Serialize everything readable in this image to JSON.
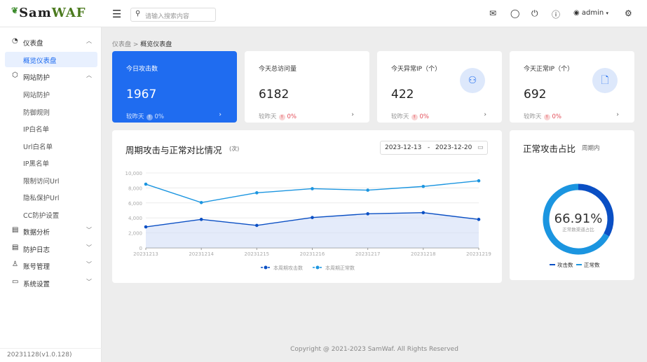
{
  "header": {
    "logo": "SamWAF",
    "search_placeholder": "请输入搜索内容",
    "user": "admin",
    "icons": [
      "mail-icon",
      "loading-icon",
      "power-icon",
      "help-icon",
      "user-icon",
      "settings-icon"
    ]
  },
  "sidebar": {
    "items": [
      {
        "label": "仪表盘",
        "icon": "dashboard-icon",
        "expanded": true
      },
      {
        "label": "概览仪表盘",
        "active": true
      },
      {
        "label": "网站防护",
        "icon": "shield-icon",
        "expanded": true
      },
      {
        "label": "网站防护"
      },
      {
        "label": "防御规则"
      },
      {
        "label": "IP白名单"
      },
      {
        "label": "Url白名单"
      },
      {
        "label": "IP黑名单"
      },
      {
        "label": "限制访问Url"
      },
      {
        "label": "隐私保护Url"
      },
      {
        "label": "CC防护设置"
      },
      {
        "label": "数据分析",
        "icon": "chart-icon"
      },
      {
        "label": "防护日志",
        "icon": "log-icon"
      },
      {
        "label": "账号管理",
        "icon": "users-icon"
      },
      {
        "label": "系统设置",
        "icon": "system-icon"
      }
    ],
    "version": "20231128(v1.0.128)"
  },
  "breadcrumb": [
    "仪表盘",
    "概览仪表盘"
  ],
  "stats": [
    {
      "title": "今日攻击数",
      "value": "1967",
      "compare": "较昨天",
      "change": "0%"
    },
    {
      "title": "今天总访问量",
      "value": "6182",
      "compare": "较昨天",
      "change": "0%"
    },
    {
      "title": "今天异常IP（个）",
      "value": "422",
      "compare": "较昨天",
      "change": "0%",
      "icon": "users-icon"
    },
    {
      "title": "今天正常IP（个）",
      "value": "692",
      "compare": "较昨天",
      "change": "0%",
      "icon": "file-icon"
    }
  ],
  "trend": {
    "title": "周期攻击与正常对比情况",
    "unit": "(次)",
    "date_start": "2023-12-13",
    "date_sep": "-",
    "date_end": "2023-12-20"
  },
  "chart_data": [
    {
      "type": "line",
      "categories": [
        "20231213",
        "20231214",
        "20231215",
        "20231216",
        "20231217",
        "20231218",
        "20231219"
      ],
      "series": [
        {
          "name": "本周期攻击数",
          "values": [
            2800,
            3800,
            3000,
            4050,
            4550,
            4700,
            3800
          ],
          "color": "#0a4fc4",
          "area": true
        },
        {
          "name": "本周期正常数",
          "values": [
            8500,
            6050,
            7350,
            7900,
            7700,
            8200,
            8950
          ],
          "color": "#1b95e0"
        }
      ],
      "ylim": [
        0,
        10000
      ],
      "yticks": [
        "0",
        "2,000",
        "4,000",
        "6,000",
        "8,000",
        "10,000"
      ],
      "grid": true,
      "legend": "bottom"
    },
    {
      "type": "pie",
      "title": "正常攻击占比",
      "subtitle": "周期内",
      "center_value": "66.91%",
      "center_label": "正常数渠道占比",
      "slices": [
        {
          "name": "攻击数",
          "value": 33.09,
          "color": "#0a4fc4"
        },
        {
          "name": "正常数",
          "value": 66.91,
          "color": "#1b95e0"
        }
      ],
      "legend": "bottom"
    }
  ],
  "footer": "Copyright @ 2021-2023 SamWaf. All Rights Reserved"
}
